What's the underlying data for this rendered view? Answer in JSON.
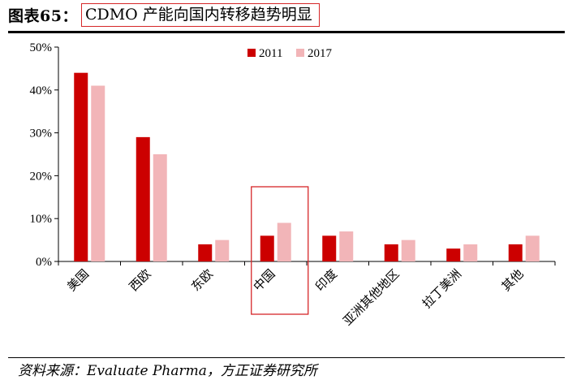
{
  "figure": {
    "label": "图表65：",
    "title": "CDMO 产能向国内转移趋势明显",
    "source": "资料来源：Evaluate Pharma，方正证券研究所"
  },
  "chart_data": {
    "type": "bar",
    "title": "",
    "xlabel": "",
    "ylabel": "",
    "ylim": [
      0,
      50
    ],
    "y_ticks": [
      "0%",
      "10%",
      "20%",
      "30%",
      "40%",
      "50%"
    ],
    "categories": [
      "美国",
      "西欧",
      "东欧",
      "中国",
      "印度",
      "亚洲其他地区",
      "拉丁美洲",
      "其他"
    ],
    "series": [
      {
        "name": "2011",
        "color": "#cc0000",
        "values": [
          44,
          29,
          4,
          6,
          6,
          4,
          3,
          4
        ]
      },
      {
        "name": "2017",
        "color": "#f2b5b8",
        "values": [
          41,
          25,
          5,
          9,
          7,
          5,
          4,
          6
        ]
      }
    ],
    "highlight_category": "中国",
    "highlight_color": "#d62728",
    "legend_position": "top-center",
    "grid": false
  }
}
